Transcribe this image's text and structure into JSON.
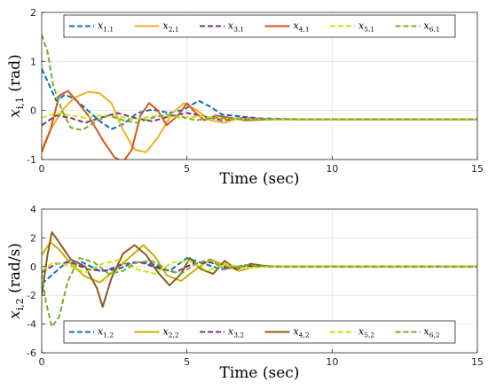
{
  "chart_data": [
    {
      "type": "line",
      "xlabel": "Time (sec)",
      "ylabel_main": "x",
      "ylabel_sub": "i,1",
      "ylabel_unit": "(rad)",
      "xlim": [
        0,
        15
      ],
      "ylim": [
        -1,
        2
      ],
      "xticks": [
        0,
        5,
        10,
        15
      ],
      "yticks": [
        -1,
        0,
        1,
        2
      ],
      "grid": true,
      "legend_position": "top",
      "series": [
        {
          "name_main": "x",
          "name_sub": "1,1",
          "color": "#0072BD",
          "dash": "6,3",
          "points": [
            [
              0,
              0.85
            ],
            [
              0.2,
              0.6
            ],
            [
              0.5,
              0.2
            ],
            [
              0.8,
              0.32
            ],
            [
              1.1,
              0.25
            ],
            [
              1.5,
              0.05
            ],
            [
              2.0,
              -0.22
            ],
            [
              2.4,
              -0.38
            ],
            [
              2.8,
              -0.28
            ],
            [
              3.3,
              -0.05
            ],
            [
              3.8,
              0.02
            ],
            [
              4.4,
              -0.05
            ],
            [
              4.9,
              0.02
            ],
            [
              5.4,
              0.2
            ],
            [
              5.8,
              0.08
            ],
            [
              6.2,
              -0.08
            ],
            [
              6.8,
              -0.12
            ],
            [
              7.5,
              -0.16
            ],
            [
              9,
              -0.18
            ],
            [
              15,
              -0.18
            ]
          ]
        },
        {
          "name_main": "x",
          "name_sub": "2,1",
          "color": "#EDB120",
          "dash": "",
          "points": [
            [
              0,
              -0.8
            ],
            [
              0.3,
              -0.4
            ],
            [
              0.7,
              0.0
            ],
            [
              1.1,
              0.25
            ],
            [
              1.6,
              0.38
            ],
            [
              2.0,
              0.35
            ],
            [
              2.4,
              0.15
            ],
            [
              2.8,
              -0.4
            ],
            [
              3.2,
              -0.8
            ],
            [
              3.6,
              -0.85
            ],
            [
              4.0,
              -0.55
            ],
            [
              4.5,
              -0.05
            ],
            [
              4.9,
              0.15
            ],
            [
              5.3,
              0.02
            ],
            [
              5.8,
              -0.2
            ],
            [
              6.3,
              -0.25
            ],
            [
              6.8,
              -0.15
            ],
            [
              7.5,
              -0.17
            ],
            [
              9,
              -0.18
            ],
            [
              15,
              -0.18
            ]
          ]
        },
        {
          "name_main": "x",
          "name_sub": "3,1",
          "color": "#7E2F8E",
          "dash": "6,3",
          "points": [
            [
              0,
              -0.3
            ],
            [
              0.5,
              -0.1
            ],
            [
              1.0,
              -0.15
            ],
            [
              1.5,
              -0.25
            ],
            [
              2.0,
              -0.15
            ],
            [
              2.6,
              -0.05
            ],
            [
              3.2,
              -0.15
            ],
            [
              3.8,
              -0.22
            ],
            [
              4.4,
              -0.12
            ],
            [
              5.0,
              -0.05
            ],
            [
              5.6,
              -0.12
            ],
            [
              6.2,
              -0.2
            ],
            [
              7.0,
              -0.15
            ],
            [
              8.0,
              -0.18
            ],
            [
              15,
              -0.18
            ]
          ]
        },
        {
          "name_main": "x",
          "name_sub": "4,1",
          "color": "#D95319",
          "dash": "",
          "points": [
            [
              0,
              -0.85
            ],
            [
              0.3,
              -0.4
            ],
            [
              0.6,
              0.3
            ],
            [
              0.9,
              0.4
            ],
            [
              1.2,
              0.2
            ],
            [
              1.6,
              -0.1
            ],
            [
              2.1,
              -0.6
            ],
            [
              2.5,
              -0.95
            ],
            [
              2.8,
              -1.05
            ],
            [
              3.1,
              -0.8
            ],
            [
              3.4,
              -0.1
            ],
            [
              3.7,
              0.15
            ],
            [
              4.0,
              0.0
            ],
            [
              4.3,
              -0.3
            ],
            [
              4.7,
              -0.1
            ],
            [
              5.0,
              0.15
            ],
            [
              5.3,
              -0.05
            ],
            [
              5.6,
              -0.2
            ],
            [
              6.0,
              -0.1
            ],
            [
              6.5,
              -0.15
            ],
            [
              7.0,
              -0.2
            ],
            [
              8,
              -0.18
            ],
            [
              15,
              -0.18
            ]
          ]
        },
        {
          "name_main": "x",
          "name_sub": "5,1",
          "color": "#C5E80A",
          "dash": "6,3",
          "points": [
            [
              0,
              -0.15
            ],
            [
              0.5,
              -0.05
            ],
            [
              1.0,
              -0.1
            ],
            [
              1.5,
              -0.15
            ],
            [
              2.0,
              -0.1
            ],
            [
              2.6,
              -0.12
            ],
            [
              3.2,
              -0.18
            ],
            [
              4.0,
              -0.1
            ],
            [
              4.8,
              -0.15
            ],
            [
              5.5,
              -0.12
            ],
            [
              6.5,
              -0.17
            ],
            [
              8.0,
              -0.18
            ],
            [
              15,
              -0.18
            ]
          ]
        },
        {
          "name_main": "x",
          "name_sub": "6,1",
          "color": "#77AC30",
          "dash": "6,3",
          "points": [
            [
              0,
              1.55
            ],
            [
              0.2,
              1.2
            ],
            [
              0.4,
              0.5
            ],
            [
              0.7,
              0.0
            ],
            [
              1.0,
              -0.35
            ],
            [
              1.4,
              -0.4
            ],
            [
              1.8,
              -0.25
            ],
            [
              2.3,
              -0.1
            ],
            [
              2.8,
              -0.2
            ],
            [
              3.3,
              -0.25
            ],
            [
              3.8,
              -0.15
            ],
            [
              4.3,
              -0.08
            ],
            [
              4.8,
              -0.12
            ],
            [
              5.3,
              -0.2
            ],
            [
              6.0,
              -0.15
            ],
            [
              7.0,
              -0.18
            ],
            [
              15,
              -0.18
            ]
          ]
        }
      ]
    },
    {
      "type": "line",
      "xlabel": "Time (sec)",
      "ylabel_main": "x",
      "ylabel_sub": "i,2",
      "ylabel_unit": "(rad/s)",
      "xlim": [
        0,
        15
      ],
      "ylim": [
        -6,
        4
      ],
      "xticks": [
        0,
        5,
        10,
        15
      ],
      "yticks": [
        -6,
        -4,
        -2,
        0,
        2,
        4
      ],
      "grid": true,
      "legend_position": "bottom",
      "series": [
        {
          "name_main": "x",
          "name_sub": "1,2",
          "color": "#0072BD",
          "dash": "6,3",
          "points": [
            [
              0,
              -1.2
            ],
            [
              0.4,
              -0.5
            ],
            [
              0.9,
              0.4
            ],
            [
              1.4,
              0.3
            ],
            [
              2.0,
              -0.3
            ],
            [
              2.6,
              -0.2
            ],
            [
              3.2,
              0.3
            ],
            [
              3.8,
              0.2
            ],
            [
              4.4,
              -0.3
            ],
            [
              5.0,
              0.6
            ],
            [
              5.6,
              0.2
            ],
            [
              6.2,
              -0.2
            ],
            [
              7.0,
              0.1
            ],
            [
              8.0,
              0.0
            ],
            [
              15,
              0.0
            ]
          ]
        },
        {
          "name_main": "x",
          "name_sub": "2,2",
          "color": "#C9B000",
          "dash": "",
          "points": [
            [
              0,
              0.8
            ],
            [
              0.3,
              1.7
            ],
            [
              0.6,
              1.2
            ],
            [
              1.0,
              0.2
            ],
            [
              1.5,
              -0.7
            ],
            [
              2.0,
              -1.1
            ],
            [
              2.5,
              -0.3
            ],
            [
              3.0,
              0.6
            ],
            [
              3.5,
              1.5
            ],
            [
              3.9,
              0.7
            ],
            [
              4.3,
              -0.6
            ],
            [
              4.8,
              -1.0
            ],
            [
              5.3,
              -0.2
            ],
            [
              5.8,
              0.5
            ],
            [
              6.3,
              0.1
            ],
            [
              6.8,
              -0.3
            ],
            [
              7.5,
              0.1
            ],
            [
              8.0,
              0.0
            ],
            [
              15,
              0.0
            ]
          ]
        },
        {
          "name_main": "x",
          "name_sub": "3,2",
          "color": "#7E2F8E",
          "dash": "6,3",
          "points": [
            [
              0,
              -0.4
            ],
            [
              0.5,
              0.2
            ],
            [
              1.0,
              0.3
            ],
            [
              1.6,
              -0.2
            ],
            [
              2.2,
              -0.3
            ],
            [
              2.8,
              0.2
            ],
            [
              3.4,
              0.3
            ],
            [
              4.0,
              -0.1
            ],
            [
              4.6,
              -0.4
            ],
            [
              5.2,
              0.2
            ],
            [
              5.8,
              0.3
            ],
            [
              6.4,
              -0.1
            ],
            [
              7.2,
              0.05
            ],
            [
              8.0,
              0.0
            ],
            [
              15,
              0.0
            ]
          ]
        },
        {
          "name_main": "x",
          "name_sub": "4,2",
          "color": "#8C5A1E",
          "dash": "",
          "points": [
            [
              0,
              -2.0
            ],
            [
              0.2,
              0.8
            ],
            [
              0.35,
              2.4
            ],
            [
              0.6,
              1.7
            ],
            [
              1.0,
              0.5
            ],
            [
              1.5,
              0.0
            ],
            [
              1.9,
              -1.5
            ],
            [
              2.1,
              -2.8
            ],
            [
              2.4,
              -0.8
            ],
            [
              2.8,
              0.9
            ],
            [
              3.2,
              1.5
            ],
            [
              3.6,
              0.8
            ],
            [
              4.0,
              -0.4
            ],
            [
              4.4,
              -1.3
            ],
            [
              4.8,
              -0.5
            ],
            [
              5.1,
              0.6
            ],
            [
              5.5,
              -0.2
            ],
            [
              5.9,
              -0.5
            ],
            [
              6.3,
              0.4
            ],
            [
              6.7,
              -0.2
            ],
            [
              7.2,
              0.2
            ],
            [
              7.8,
              0.0
            ],
            [
              15,
              0.0
            ]
          ]
        },
        {
          "name_main": "x",
          "name_sub": "5,2",
          "color": "#C5E80A",
          "dash": "6,3",
          "points": [
            [
              0,
              -0.3
            ],
            [
              0.4,
              0.3
            ],
            [
              0.9,
              0.1
            ],
            [
              1.5,
              -0.4
            ],
            [
              2.1,
              0.2
            ],
            [
              2.7,
              0.5
            ],
            [
              3.3,
              -0.2
            ],
            [
              3.9,
              -0.5
            ],
            [
              4.5,
              0.3
            ],
            [
              5.1,
              0.4
            ],
            [
              5.7,
              -0.3
            ],
            [
              6.3,
              0.2
            ],
            [
              7.0,
              -0.1
            ],
            [
              8.0,
              0.0
            ],
            [
              15,
              0.0
            ]
          ]
        },
        {
          "name_main": "x",
          "name_sub": "6,2",
          "color": "#77AC30",
          "dash": "6,3",
          "points": [
            [
              0,
              -0.5
            ],
            [
              0.15,
              -2.5
            ],
            [
              0.35,
              -4.2
            ],
            [
              0.6,
              -3.5
            ],
            [
              0.9,
              -1.0
            ],
            [
              1.3,
              0.6
            ],
            [
              1.8,
              0.3
            ],
            [
              2.3,
              -0.5
            ],
            [
              2.8,
              -0.3
            ],
            [
              3.3,
              0.3
            ],
            [
              3.8,
              0.4
            ],
            [
              4.3,
              -0.2
            ],
            [
              4.8,
              -0.5
            ],
            [
              5.3,
              0.2
            ],
            [
              5.8,
              0.5
            ],
            [
              6.3,
              -0.2
            ],
            [
              7.0,
              0.1
            ],
            [
              8.0,
              0.0
            ],
            [
              15,
              0.0
            ]
          ]
        }
      ]
    }
  ]
}
